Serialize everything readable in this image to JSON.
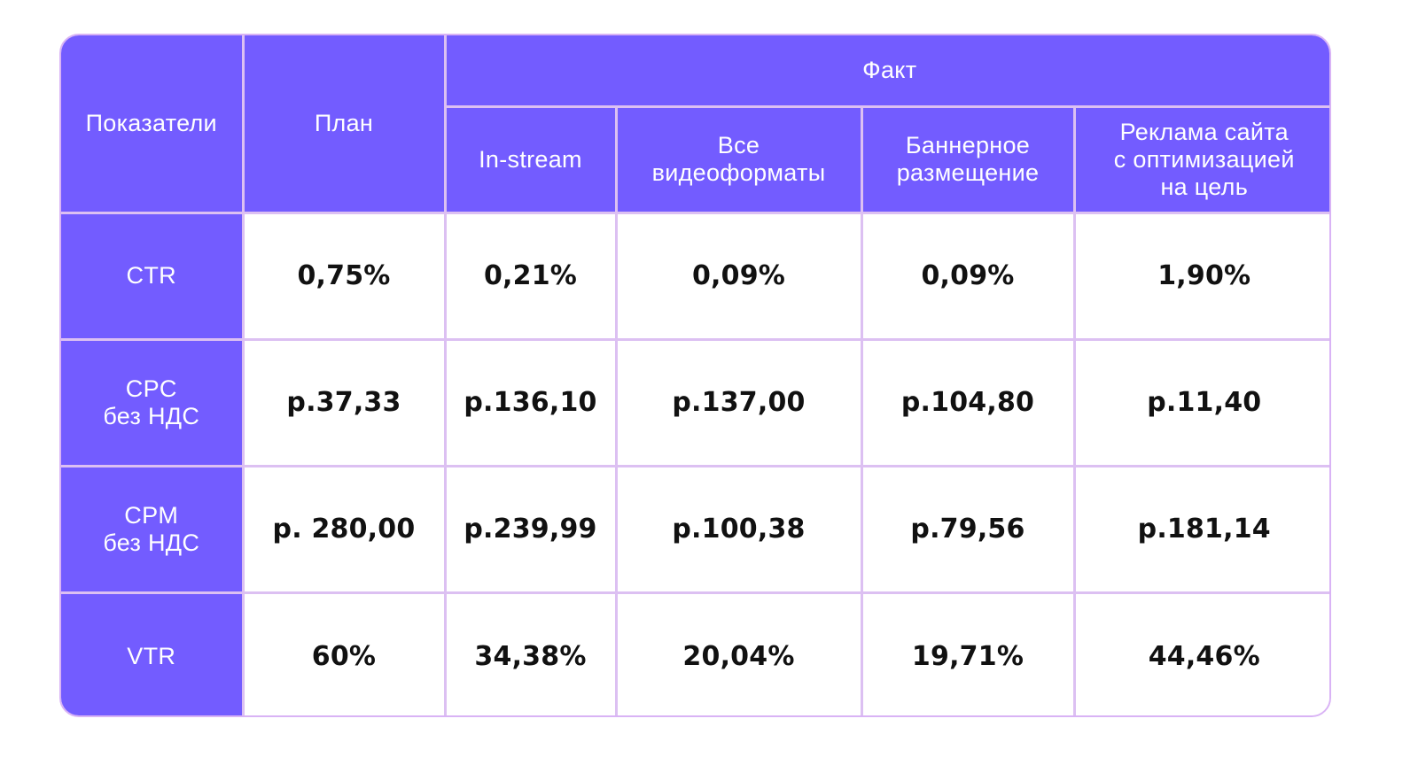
{
  "table": {
    "header": {
      "indicators": "Показатели",
      "plan": "План",
      "fact": "Факт",
      "columns": [
        [
          "In-stream"
        ],
        [
          "Все",
          "видеоформаты"
        ],
        [
          "Баннерное",
          "размещение"
        ],
        [
          "Реклама сайта",
          "с оптимизацией",
          "на цель"
        ]
      ]
    },
    "rows": [
      {
        "label": [
          "CTR"
        ],
        "values": [
          "0,75%",
          "0,21%",
          "0,09%",
          "0,09%",
          "1,90%"
        ]
      },
      {
        "label": [
          "CPC",
          "без НДС"
        ],
        "values": [
          "р.37,33",
          "р.136,10",
          "р.137,00",
          "р.104,80",
          "р.11,40"
        ]
      },
      {
        "label": [
          "CPM",
          "без НДС"
        ],
        "values": [
          "р. 280,00",
          "р.239,99",
          "р.100,38",
          "р.79,56",
          "р.181,14"
        ]
      },
      {
        "label": [
          "VTR"
        ],
        "values": [
          "60%",
          "34,38%",
          "20,04%",
          "19,71%",
          "44,46%"
        ]
      }
    ]
  },
  "colors": {
    "header_bg": "#735cff",
    "border": "#dcc0f2",
    "value_text": "#111111"
  }
}
